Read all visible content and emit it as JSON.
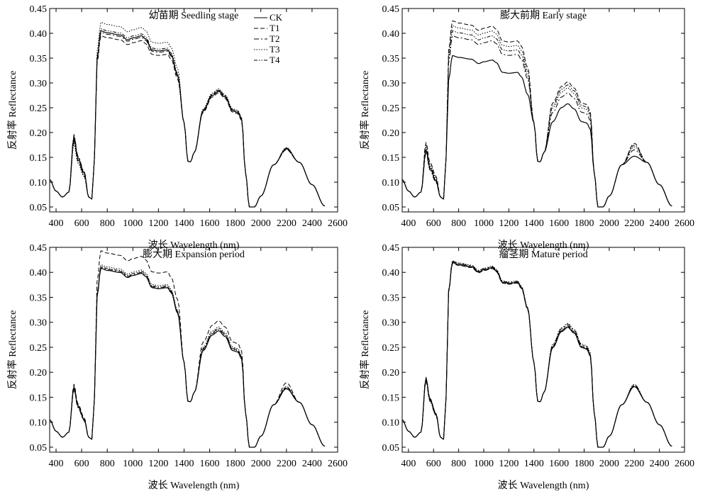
{
  "chart_data": [
    {
      "type": "line",
      "title": "幼苗期 Seedling stage",
      "xlabel": "波长 Wavelength (nm)",
      "ylabel": "反射率 Reflectance",
      "xlim": [
        350,
        2600
      ],
      "ylim": [
        0.04,
        0.45
      ],
      "xticks": [
        "400",
        "600",
        "800",
        "1000",
        "1200",
        "1400",
        "1600",
        "1800",
        "2000",
        "2200",
        "2400",
        "2600"
      ],
      "yticks": [
        "0.05",
        "0.10",
        "0.15",
        "0.20",
        "0.25",
        "0.30",
        "0.35",
        "0.40",
        "0.45"
      ],
      "legend_position": "top-right",
      "series": [
        {
          "name": "CK",
          "dash": "solid",
          "nir": 0.405,
          "swir": 0.283,
          "green": 0.192
        },
        {
          "name": "T1",
          "dash": "dashed",
          "nir": 0.395,
          "swir": 0.28,
          "green": 0.186
        },
        {
          "name": "T2",
          "dash": "dashdot",
          "nir": 0.402,
          "swir": 0.285,
          "green": 0.196
        },
        {
          "name": "T3",
          "dash": "dotted",
          "nir": 0.422,
          "swir": 0.288,
          "green": 0.178
        },
        {
          "name": "T4",
          "dash": "dashdotdot",
          "nir": 0.409,
          "swir": 0.286,
          "green": 0.183
        }
      ]
    },
    {
      "type": "line",
      "title": "膨大前期 Early stage",
      "xlabel": "波长 Wavelength (nm)",
      "ylabel": "反射率 Reflectance",
      "xlim": [
        350,
        2600
      ],
      "ylim": [
        0.04,
        0.45
      ],
      "xticks": [
        "400",
        "600",
        "800",
        "1000",
        "1200",
        "1400",
        "1600",
        "1800",
        "2000",
        "2200",
        "2400",
        "2600"
      ],
      "yticks": [
        "0.05",
        "0.10",
        "0.15",
        "0.20",
        "0.25",
        "0.30",
        "0.35",
        "0.40",
        "0.45"
      ],
      "series": [
        {
          "name": "CK",
          "dash": "solid",
          "nir": 0.355,
          "swir": 0.258,
          "green": 0.165
        },
        {
          "name": "T1",
          "dash": "dashed",
          "nir": 0.425,
          "swir": 0.302,
          "green": 0.18
        },
        {
          "name": "T2",
          "dash": "dashdot",
          "nir": 0.395,
          "swir": 0.28,
          "green": 0.16
        },
        {
          "name": "T3",
          "dash": "dotted",
          "nir": 0.415,
          "swir": 0.29,
          "green": 0.175
        },
        {
          "name": "T4",
          "dash": "dashdotdot",
          "nir": 0.405,
          "swir": 0.296,
          "green": 0.17
        }
      ]
    },
    {
      "type": "line",
      "title": "膨大期 Expansion period",
      "xlabel": "波长 Wavelength (nm)",
      "ylabel": "反射率 Reflectance",
      "xlim": [
        350,
        2600
      ],
      "ylim": [
        0.04,
        0.45
      ],
      "xticks": [
        "400",
        "600",
        "800",
        "1000",
        "1200",
        "1400",
        "1600",
        "1800",
        "2000",
        "2200",
        "2400",
        "2600"
      ],
      "yticks": [
        "0.05",
        "0.10",
        "0.15",
        "0.20",
        "0.25",
        "0.30",
        "0.35",
        "0.40",
        "0.45"
      ],
      "series": [
        {
          "name": "CK",
          "dash": "solid",
          "nir": 0.408,
          "swir": 0.283,
          "green": 0.17
        },
        {
          "name": "T1",
          "dash": "dashed",
          "nir": 0.443,
          "swir": 0.303,
          "green": 0.176
        },
        {
          "name": "T2",
          "dash": "dashdot",
          "nir": 0.41,
          "swir": 0.288,
          "green": 0.166
        },
        {
          "name": "T3",
          "dash": "dotted",
          "nir": 0.415,
          "swir": 0.291,
          "green": 0.172
        },
        {
          "name": "T4",
          "dash": "dashdotdot",
          "nir": 0.412,
          "swir": 0.286,
          "green": 0.168
        }
      ]
    },
    {
      "type": "line",
      "title": "瘤茎期 Mature period",
      "xlabel": "波长 Wavelength (nm)",
      "ylabel": "反射率 Reflectance",
      "xlim": [
        350,
        2600
      ],
      "ylim": [
        0.04,
        0.45
      ],
      "xticks": [
        "400",
        "600",
        "800",
        "1000",
        "1200",
        "1400",
        "1600",
        "1800",
        "2000",
        "2200",
        "2400",
        "2600"
      ],
      "yticks": [
        "0.05",
        "0.10",
        "0.15",
        "0.20",
        "0.25",
        "0.30",
        "0.35",
        "0.40",
        "0.45"
      ],
      "series": [
        {
          "name": "CK",
          "dash": "solid",
          "nir": 0.42,
          "swir": 0.29,
          "green": 0.188
        },
        {
          "name": "T1",
          "dash": "dashed",
          "nir": 0.418,
          "swir": 0.293,
          "green": 0.184
        },
        {
          "name": "T2",
          "dash": "dashdot",
          "nir": 0.422,
          "swir": 0.296,
          "green": 0.19
        },
        {
          "name": "T3",
          "dash": "dotted",
          "nir": 0.423,
          "swir": 0.298,
          "green": 0.186
        },
        {
          "name": "T4",
          "dash": "dashdotdot",
          "nir": 0.419,
          "swir": 0.292,
          "green": 0.182
        }
      ]
    }
  ]
}
